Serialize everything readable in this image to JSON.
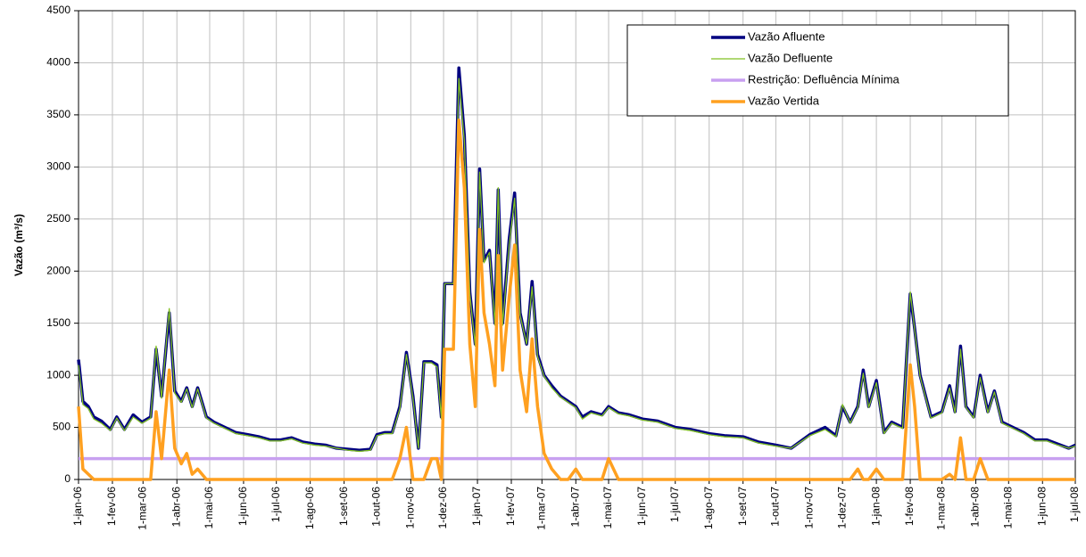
{
  "chart_data": {
    "type": "line",
    "y_label": "Vazão (m³/s)",
    "xlim": [
      "2006-01-01",
      "2008-07-01"
    ],
    "ylim": [
      0,
      4500
    ],
    "yticks": [
      0,
      500,
      1000,
      1500,
      2000,
      2500,
      3000,
      3500,
      4000,
      4500
    ],
    "xticks": [
      {
        "value": "2006-01-01",
        "label": "1-jan-06"
      },
      {
        "value": "2006-02-01",
        "label": "1-fev-06"
      },
      {
        "value": "2006-03-01",
        "label": "1-mar-06"
      },
      {
        "value": "2006-04-01",
        "label": "1-abr-06"
      },
      {
        "value": "2006-05-01",
        "label": "1-mai-06"
      },
      {
        "value": "2006-06-01",
        "label": "1-jun-06"
      },
      {
        "value": "2006-07-01",
        "label": "1-jul-06"
      },
      {
        "value": "2006-08-01",
        "label": "1-ago-06"
      },
      {
        "value": "2006-09-01",
        "label": "1-set-06"
      },
      {
        "value": "2006-10-01",
        "label": "1-out-06"
      },
      {
        "value": "2006-11-01",
        "label": "1-nov-06"
      },
      {
        "value": "2006-12-01",
        "label": "1-dez-06"
      },
      {
        "value": "2007-01-01",
        "label": "1-jan-07"
      },
      {
        "value": "2007-02-01",
        "label": "1-fev-07"
      },
      {
        "value": "2007-03-01",
        "label": "1-mar-07"
      },
      {
        "value": "2007-04-01",
        "label": "1-abr-07"
      },
      {
        "value": "2007-05-01",
        "label": "1-mai-07"
      },
      {
        "value": "2007-06-01",
        "label": "1-jun-07"
      },
      {
        "value": "2007-07-01",
        "label": "1-jul-07"
      },
      {
        "value": "2007-08-01",
        "label": "1-ago-07"
      },
      {
        "value": "2007-09-01",
        "label": "1-set-07"
      },
      {
        "value": "2007-10-01",
        "label": "1-out-07"
      },
      {
        "value": "2007-11-01",
        "label": "1-nov-07"
      },
      {
        "value": "2007-12-01",
        "label": "1-dez-07"
      },
      {
        "value": "2008-01-01",
        "label": "1-jan-08"
      },
      {
        "value": "2008-02-01",
        "label": "1-fev-08"
      },
      {
        "value": "2008-03-01",
        "label": "1-mar-08"
      },
      {
        "value": "2008-04-01",
        "label": "1-abr-08"
      },
      {
        "value": "2008-05-01",
        "label": "1-mai-08"
      },
      {
        "value": "2008-06-01",
        "label": "1-jun-08"
      },
      {
        "value": "2008-07-01",
        "label": "1-jul-08"
      }
    ],
    "grid": true,
    "legend": "top-right",
    "x": [
      "2006-01-01",
      "2006-01-05",
      "2006-01-10",
      "2006-01-15",
      "2006-01-22",
      "2006-01-30",
      "2006-02-05",
      "2006-02-12",
      "2006-02-20",
      "2006-02-28",
      "2006-03-08",
      "2006-03-13",
      "2006-03-18",
      "2006-03-25",
      "2006-03-30",
      "2006-04-05",
      "2006-04-10",
      "2006-04-15",
      "2006-04-20",
      "2006-04-28",
      "2006-05-05",
      "2006-05-15",
      "2006-05-25",
      "2006-06-05",
      "2006-06-15",
      "2006-06-25",
      "2006-07-05",
      "2006-07-15",
      "2006-07-25",
      "2006-08-05",
      "2006-08-15",
      "2006-08-25",
      "2006-09-05",
      "2006-09-15",
      "2006-09-25",
      "2006-10-01",
      "2006-10-08",
      "2006-10-15",
      "2006-10-22",
      "2006-10-28",
      "2006-11-03",
      "2006-11-08",
      "2006-11-13",
      "2006-11-20",
      "2006-11-25",
      "2006-11-29",
      "2006-12-02",
      "2006-12-10",
      "2006-12-15",
      "2006-12-20",
      "2006-12-25",
      "2006-12-30",
      "2007-01-03",
      "2007-01-07",
      "2007-01-12",
      "2007-01-17",
      "2007-01-20",
      "2007-01-24",
      "2007-01-30",
      "2007-02-04",
      "2007-02-09",
      "2007-02-15",
      "2007-02-20",
      "2007-02-25",
      "2007-03-03",
      "2007-03-10",
      "2007-03-18",
      "2007-03-25",
      "2007-04-01",
      "2007-04-07",
      "2007-04-15",
      "2007-04-25",
      "2007-05-01",
      "2007-05-10",
      "2007-05-20",
      "2007-06-01",
      "2007-06-15",
      "2007-07-01",
      "2007-07-15",
      "2007-08-01",
      "2007-08-15",
      "2007-09-01",
      "2007-09-15",
      "2007-10-01",
      "2007-10-15",
      "2007-11-01",
      "2007-11-15",
      "2007-11-25",
      "2007-12-01",
      "2007-12-08",
      "2007-12-15",
      "2007-12-20",
      "2007-12-25",
      "2008-01-01",
      "2008-01-08",
      "2008-01-15",
      "2008-01-25",
      "2008-02-01",
      "2008-02-05",
      "2008-02-10",
      "2008-02-20",
      "2008-03-01",
      "2008-03-08",
      "2008-03-13",
      "2008-03-18",
      "2008-03-23",
      "2008-03-30",
      "2008-04-05",
      "2008-04-12",
      "2008-04-18",
      "2008-04-25",
      "2008-05-05",
      "2008-05-15",
      "2008-05-25",
      "2008-06-05",
      "2008-06-15",
      "2008-06-25",
      "2008-07-01"
    ],
    "series": [
      {
        "name": "Vazão Afluente",
        "color": "#000080",
        "width": 3.5,
        "values": [
          1150,
          750,
          700,
          600,
          560,
          480,
          600,
          480,
          620,
          550,
          600,
          1250,
          800,
          1600,
          850,
          750,
          880,
          700,
          880,
          600,
          550,
          500,
          450,
          430,
          410,
          380,
          380,
          400,
          360,
          340,
          330,
          300,
          290,
          280,
          290,
          430,
          450,
          450,
          700,
          1220,
          800,
          300,
          1130,
          1130,
          1100,
          600,
          1880,
          1880,
          3950,
          3300,
          1800,
          1300,
          2980,
          2100,
          2200,
          1500,
          2780,
          1500,
          2300,
          2750,
          1600,
          1300,
          1900,
          1200,
          1000,
          900,
          800,
          750,
          700,
          600,
          650,
          620,
          700,
          640,
          620,
          580,
          560,
          500,
          480,
          440,
          420,
          410,
          360,
          330,
          300,
          430,
          500,
          420,
          700,
          550,
          700,
          1050,
          700,
          950,
          450,
          550,
          500,
          1780,
          1450,
          1000,
          600,
          650,
          900,
          650,
          1280,
          700,
          600,
          1000,
          650,
          850,
          550,
          500,
          450,
          380,
          380,
          340,
          300,
          330
        ]
      },
      {
        "name": "Vazão Defluente",
        "color": "#80c020",
        "width": 1.3,
        "values": [
          1100,
          720,
          680,
          580,
          540,
          470,
          590,
          470,
          600,
          540,
          590,
          1280,
          780,
          1640,
          830,
          740,
          870,
          690,
          870,
          590,
          540,
          490,
          440,
          420,
          400,
          370,
          370,
          390,
          350,
          330,
          320,
          300,
          280,
          270,
          280,
          420,
          440,
          440,
          680,
          1200,
          780,
          300,
          1120,
          1120,
          1080,
          580,
          1880,
          1880,
          3850,
          3250,
          1780,
          1280,
          2950,
          2080,
          2180,
          1480,
          2800,
          1480,
          2250,
          2700,
          1580,
          1300,
          1850,
          1180,
          990,
          880,
          790,
          740,
          690,
          580,
          640,
          610,
          690,
          630,
          610,
          570,
          550,
          490,
          470,
          430,
          410,
          400,
          350,
          320,
          300,
          420,
          480,
          410,
          720,
          540,
          690,
          1020,
          690,
          930,
          440,
          540,
          490,
          1800,
          1440,
          990,
          590,
          640,
          880,
          640,
          1250,
          690,
          590,
          980,
          640,
          840,
          540,
          490,
          440,
          370,
          370,
          330,
          300,
          320
        ]
      },
      {
        "name": "Restrição: Defluência Mínima",
        "color": "#c8a0f0",
        "width": 3.5,
        "values": [
          200,
          200,
          200,
          200,
          200,
          200,
          200,
          200,
          200,
          200,
          200,
          200,
          200,
          200,
          200,
          200,
          200,
          200,
          200,
          200,
          200,
          200,
          200,
          200,
          200,
          200,
          200,
          200,
          200,
          200,
          200,
          200,
          200,
          200,
          200,
          200,
          200,
          200,
          200,
          200,
          200,
          200,
          200,
          200,
          200,
          200,
          200,
          200,
          200,
          200,
          200,
          200,
          200,
          200,
          200,
          200,
          200,
          200,
          200,
          200,
          200,
          200,
          200,
          200,
          200,
          200,
          200,
          200,
          200,
          200,
          200,
          200,
          200,
          200,
          200,
          200,
          200,
          200,
          200,
          200,
          200,
          200,
          200,
          200,
          200,
          200,
          200,
          200,
          200,
          200,
          200,
          200,
          200,
          200,
          200,
          200,
          200,
          200,
          200,
          200,
          200,
          200,
          200,
          200,
          200,
          200,
          200,
          200,
          200,
          200,
          200,
          200,
          200,
          200,
          200,
          200,
          200,
          200
        ]
      },
      {
        "name": "Vazão Vertida",
        "color": "#ffa020",
        "width": 3.5,
        "values": [
          700,
          100,
          50,
          0,
          0,
          0,
          0,
          0,
          0,
          0,
          0,
          650,
          200,
          1050,
          300,
          150,
          250,
          50,
          100,
          0,
          0,
          0,
          0,
          0,
          0,
          0,
          0,
          0,
          0,
          0,
          0,
          0,
          0,
          0,
          0,
          0,
          0,
          0,
          200,
          500,
          0,
          0,
          0,
          200,
          200,
          0,
          1250,
          1250,
          3450,
          2800,
          1300,
          700,
          2400,
          1600,
          1300,
          900,
          2150,
          1050,
          1750,
          2250,
          1050,
          650,
          1350,
          700,
          250,
          100,
          0,
          0,
          100,
          0,
          0,
          0,
          200,
          0,
          0,
          0,
          0,
          0,
          0,
          0,
          0,
          0,
          0,
          0,
          0,
          0,
          0,
          0,
          0,
          0,
          100,
          0,
          0,
          100,
          0,
          0,
          0,
          1100,
          700,
          0,
          0,
          0,
          50,
          0,
          400,
          0,
          0,
          200,
          0,
          0,
          0,
          0,
          0,
          0,
          0,
          0,
          0,
          0
        ]
      }
    ]
  }
}
